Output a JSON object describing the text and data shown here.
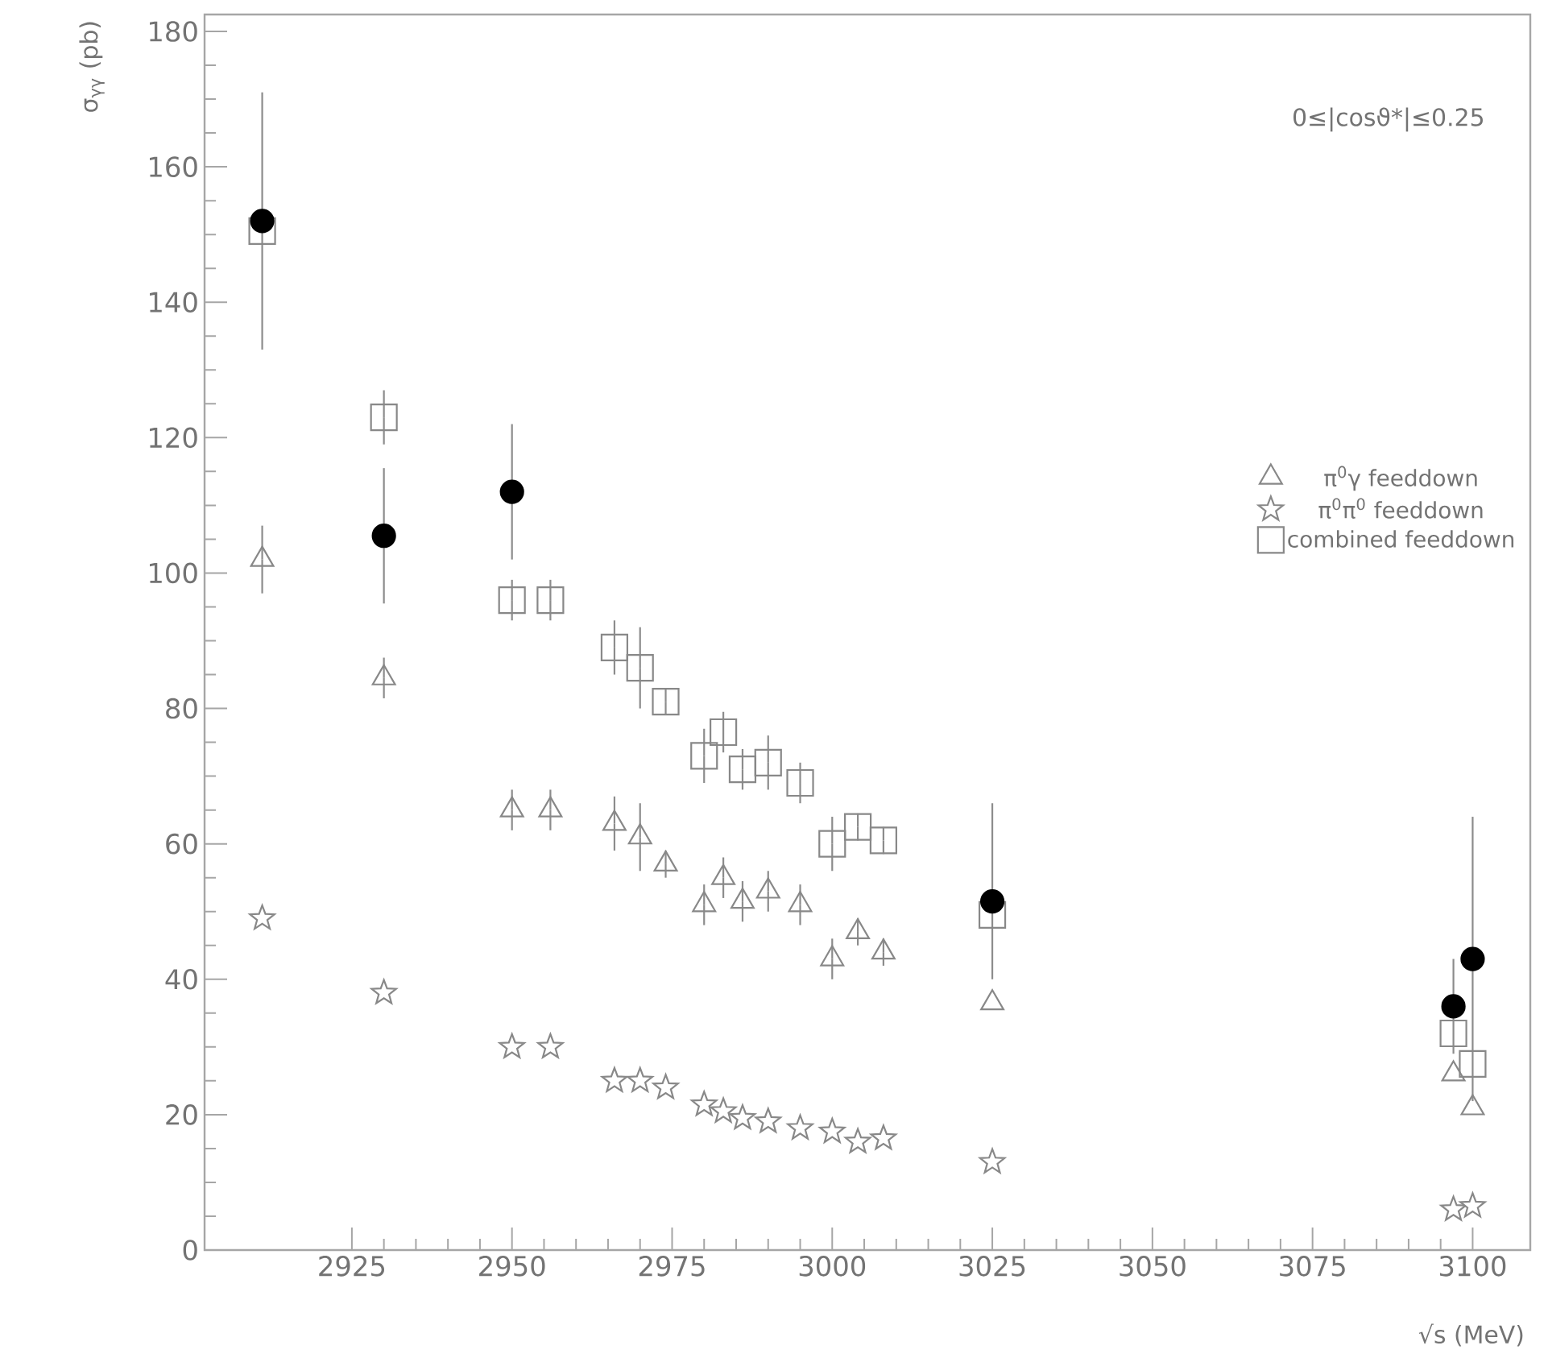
{
  "chart_data": {
    "type": "scatter",
    "xlabel": "√s (MeV)",
    "ylabel": "σ$_{γγ}$ (pb)",
    "annotations": [
      "0≤|cosϑ*|≤0.25"
    ],
    "xlim": [
      2902,
      3109
    ],
    "xticks": [
      2925,
      2950,
      2975,
      3000,
      3025,
      3050,
      3075,
      3100
    ],
    "ylim": [
      0,
      182.5
    ],
    "yticks": [
      0,
      20,
      40,
      60,
      80,
      100,
      120,
      140,
      160,
      180
    ],
    "legend": "right",
    "grid": false,
    "series": [
      {
        "name": "π$^{0}$γ feeddown",
        "color": "#888888",
        "marker": "triangle",
        "x": [
          2911,
          2930,
          2950,
          2956,
          2966,
          2970,
          2974,
          2980,
          2983,
          2986,
          2990,
          2995,
          3000,
          3004,
          3008,
          3025,
          3097,
          3100
        ],
        "values": [
          102,
          84.5,
          65,
          65,
          63,
          61,
          57,
          51,
          55,
          51.5,
          53,
          51,
          43,
          47,
          44,
          36.5,
          26,
          21
        ],
        "errors": [
          5,
          3,
          3,
          3,
          4,
          5,
          2,
          3,
          3,
          3,
          3,
          3,
          3,
          2,
          2,
          null,
          null,
          null
        ]
      },
      {
        "name": "π$^{0}$π$^{0}$ feeddown",
        "color": "#888888",
        "marker": "star",
        "x": [
          2911,
          2930,
          2950,
          2956,
          2966,
          2970,
          2974,
          2980,
          2983,
          2986,
          2990,
          2995,
          3000,
          3004,
          3008,
          3025,
          3097,
          3100
        ],
        "values": [
          49,
          38,
          30,
          30,
          25,
          25,
          24,
          21.5,
          20.5,
          19.5,
          19,
          18,
          17.5,
          16,
          16.5,
          13,
          6,
          6.5
        ]
      },
      {
        "name": "combined feeddown",
        "color": "#888888",
        "marker": "square",
        "x": [
          2911,
          2930,
          2950,
          2956,
          2966,
          2970,
          2974,
          2980,
          2983,
          2986,
          2990,
          2995,
          3000,
          3004,
          3008,
          3025,
          3097,
          3100
        ],
        "values": [
          150.5,
          123,
          96,
          96,
          89,
          86,
          81,
          73,
          76.5,
          71,
          72,
          69,
          60,
          62.5,
          60.5,
          49.5,
          32,
          27.5
        ],
        "errors": [
          null,
          4,
          3,
          3,
          4,
          6,
          2,
          4,
          3,
          3,
          4,
          3,
          4,
          2,
          2,
          null,
          null,
          null
        ]
      },
      {
        "color": "#000000",
        "marker": "circle",
        "x": [
          2911,
          2930,
          3097,
          2950,
          3025,
          3100
        ],
        "values": [
          152,
          105.5,
          36,
          112,
          51.5,
          43
        ],
        "errors": [
          [
            133,
            171
          ],
          [
            95.5,
            115.5
          ],
          [
            29,
            43
          ],
          [
            102,
            122
          ],
          [
            40,
            66
          ],
          [
            22,
            64
          ]
        ]
      }
    ]
  }
}
